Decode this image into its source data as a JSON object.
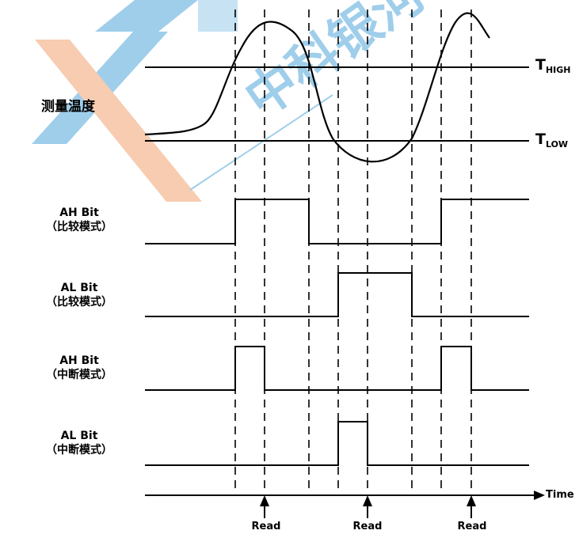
{
  "measured_temp_label": "测量温度",
  "thresholds": {
    "high": {
      "main": "T",
      "sub": "HIGH"
    },
    "low": {
      "main": "T",
      "sub": "LOW"
    }
  },
  "rows": [
    {
      "line1": "AH Bit",
      "line2": "（比较模式）"
    },
    {
      "line1": "AL Bit",
      "line2": "（比较模式）"
    },
    {
      "line1": "AH Bit",
      "line2": "（中断模式）"
    },
    {
      "line1": "AL Bit",
      "line2": "（中断模式）"
    }
  ],
  "time_label": "Time",
  "read_labels": [
    "Read",
    "Read",
    "Read"
  ],
  "watermark_text": "中科银河",
  "colors": {
    "line": "#000000",
    "watermark_blue": "#8fc6e8",
    "watermark_orange": "#f6c4a4"
  }
}
